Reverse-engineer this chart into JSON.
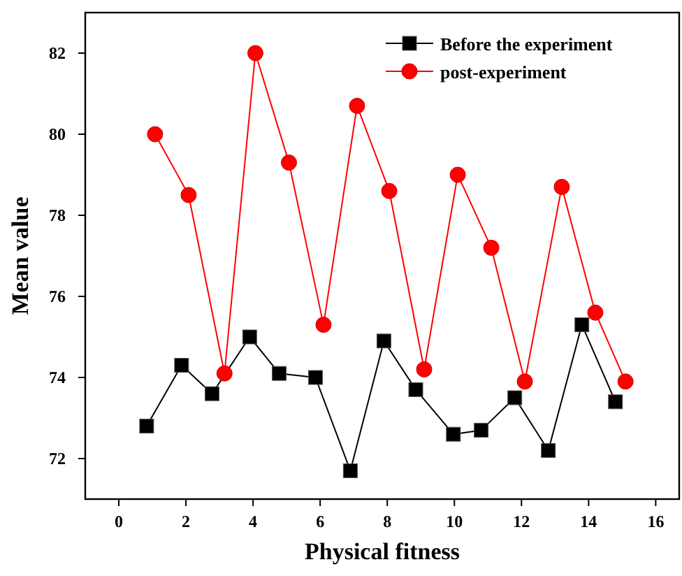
{
  "chart_data": {
    "type": "line",
    "xlabel": "Physical fitness",
    "ylabel": "Mean value",
    "xlim": [
      -1,
      16.7
    ],
    "ylim": [
      71,
      83
    ],
    "xticks": [
      0,
      2,
      4,
      6,
      8,
      10,
      12,
      14,
      16
    ],
    "yticks": [
      72,
      74,
      76,
      78,
      80,
      82
    ],
    "grid": false,
    "legend": "top right",
    "line_style": "solid",
    "series": [
      {
        "name": "Before the experiment",
        "color": "#000000",
        "marker": "square",
        "x": [
          0.83,
          1.87,
          2.78,
          3.9,
          4.78,
          5.86,
          6.9,
          7.9,
          8.85,
          9.97,
          10.8,
          11.8,
          12.8,
          13.8,
          14.8
        ],
        "values": [
          72.8,
          74.3,
          73.6,
          75.0,
          74.1,
          74.0,
          71.7,
          74.9,
          73.7,
          72.6,
          72.7,
          73.5,
          72.2,
          75.3,
          73.4
        ]
      },
      {
        "name": "post-experiment",
        "color": "#ff0000",
        "marker": "circle",
        "x": [
          1.08,
          2.08,
          3.15,
          4.07,
          5.07,
          6.1,
          7.1,
          8.06,
          9.1,
          10.1,
          11.1,
          12.1,
          13.2,
          14.2,
          15.1
        ],
        "values": [
          80,
          78.5,
          74.1,
          82,
          79.3,
          75.3,
          80.7,
          78.6,
          74.2,
          79,
          77.2,
          73.9,
          78.7,
          75.6,
          73.9
        ]
      }
    ]
  }
}
